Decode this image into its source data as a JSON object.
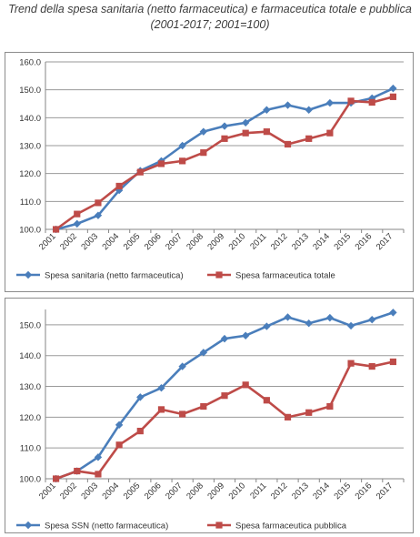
{
  "title": {
    "line1": "Trend della spesa sanitaria (netto farmaceutica) e farmaceutica totale e pubblica",
    "line2": "(2001-2017; 2001=100)"
  },
  "chart_data": [
    {
      "type": "line",
      "x": [
        "2001",
        "2002",
        "2003",
        "2004",
        "2005",
        "2006",
        "2007",
        "2008",
        "2009",
        "2010",
        "2011",
        "2012",
        "2013",
        "2014",
        "2015",
        "2016",
        "2017"
      ],
      "yticks": [
        "100.0",
        "110.0",
        "120.0",
        "130.0",
        "140.0",
        "150.0",
        "160.0"
      ],
      "ylim": [
        100,
        160
      ],
      "grid": "horizontal",
      "legend_position": "bottom",
      "series": [
        {
          "name": "Spesa sanitaria (netto farmaceutica)",
          "color": "#4a7ebb",
          "marker": "diamond",
          "values": [
            100,
            102,
            105,
            114,
            121,
            124.5,
            130,
            135,
            137,
            138.2,
            142.8,
            144.5,
            142.8,
            145.3,
            145.3,
            147,
            150.5
          ]
        },
        {
          "name": "Spesa farmaceutica totale",
          "color": "#be4b48",
          "marker": "square",
          "values": [
            100,
            105.5,
            109.5,
            115.5,
            120.5,
            123.5,
            124.5,
            127.5,
            132.5,
            134.5,
            135,
            130.5,
            132.5,
            134.5,
            146,
            145.5,
            147.5
          ]
        }
      ]
    },
    {
      "type": "line",
      "x": [
        "2001",
        "2002",
        "2003",
        "2004",
        "2005",
        "2006",
        "2007",
        "2008",
        "2009",
        "2010",
        "2011",
        "2012",
        "2013",
        "2014",
        "2015",
        "2016",
        "2017"
      ],
      "yticks": [
        "100.0",
        "110.0",
        "120.0",
        "130.0",
        "140.0",
        "150.0"
      ],
      "ylim": [
        100,
        155
      ],
      "grid": "horizontal",
      "legend_position": "bottom",
      "series": [
        {
          "name": "Spesa SSN (netto farmaceutica)",
          "color": "#4a7ebb",
          "marker": "diamond",
          "values": [
            100,
            102.5,
            107,
            117.5,
            126.5,
            129.5,
            136.5,
            141,
            145.5,
            146.5,
            149.5,
            152.5,
            150.5,
            152.3,
            149.7,
            151.7,
            154
          ]
        },
        {
          "name": "Spesa farmaceutica pubblica",
          "color": "#be4b48",
          "marker": "square",
          "values": [
            100,
            102.5,
            101.5,
            111,
            115.5,
            122.5,
            121,
            123.5,
            127,
            130.5,
            125.5,
            120,
            121.5,
            123.5,
            137.5,
            136.5,
            138
          ]
        }
      ]
    }
  ]
}
